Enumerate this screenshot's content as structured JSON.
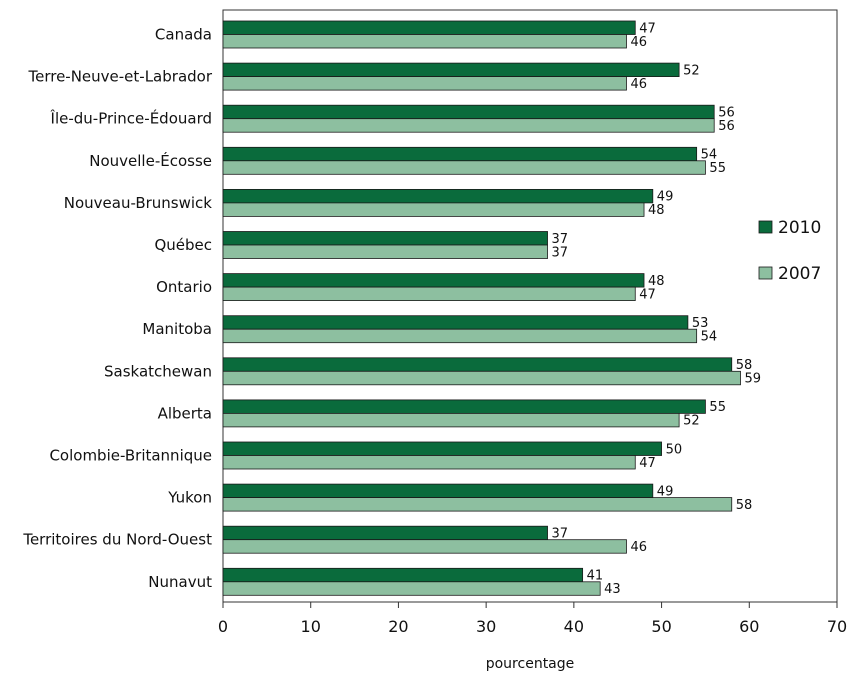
{
  "chart_data": {
    "type": "bar",
    "orientation": "horizontal",
    "categories": [
      "Canada",
      "Terre-Neuve-et-Labrador",
      "Île-du-Prince-Édouard",
      "Nouvelle-Écosse",
      "Nouveau-Brunswick",
      "Québec",
      "Ontario",
      "Manitoba",
      "Saskatchewan",
      "Alberta",
      "Colombie-Britannique",
      "Yukon",
      "Territoires du Nord-Ouest",
      "Nunavut"
    ],
    "series": [
      {
        "name": "2010",
        "color": "#0a6b3c",
        "values": [
          47,
          52,
          56,
          54,
          49,
          37,
          48,
          53,
          58,
          55,
          50,
          49,
          37,
          41
        ]
      },
      {
        "name": "2007",
        "color": "#8dbfa0",
        "values": [
          46,
          46,
          56,
          55,
          48,
          37,
          47,
          54,
          59,
          52,
          47,
          58,
          46,
          43
        ]
      }
    ],
    "xlabel": "pourcentage",
    "ylabel": "",
    "xlim": [
      0,
      70
    ],
    "xticks": [
      0,
      10,
      20,
      30,
      40,
      50,
      60,
      70
    ],
    "grid": false,
    "legend_position": "right"
  }
}
